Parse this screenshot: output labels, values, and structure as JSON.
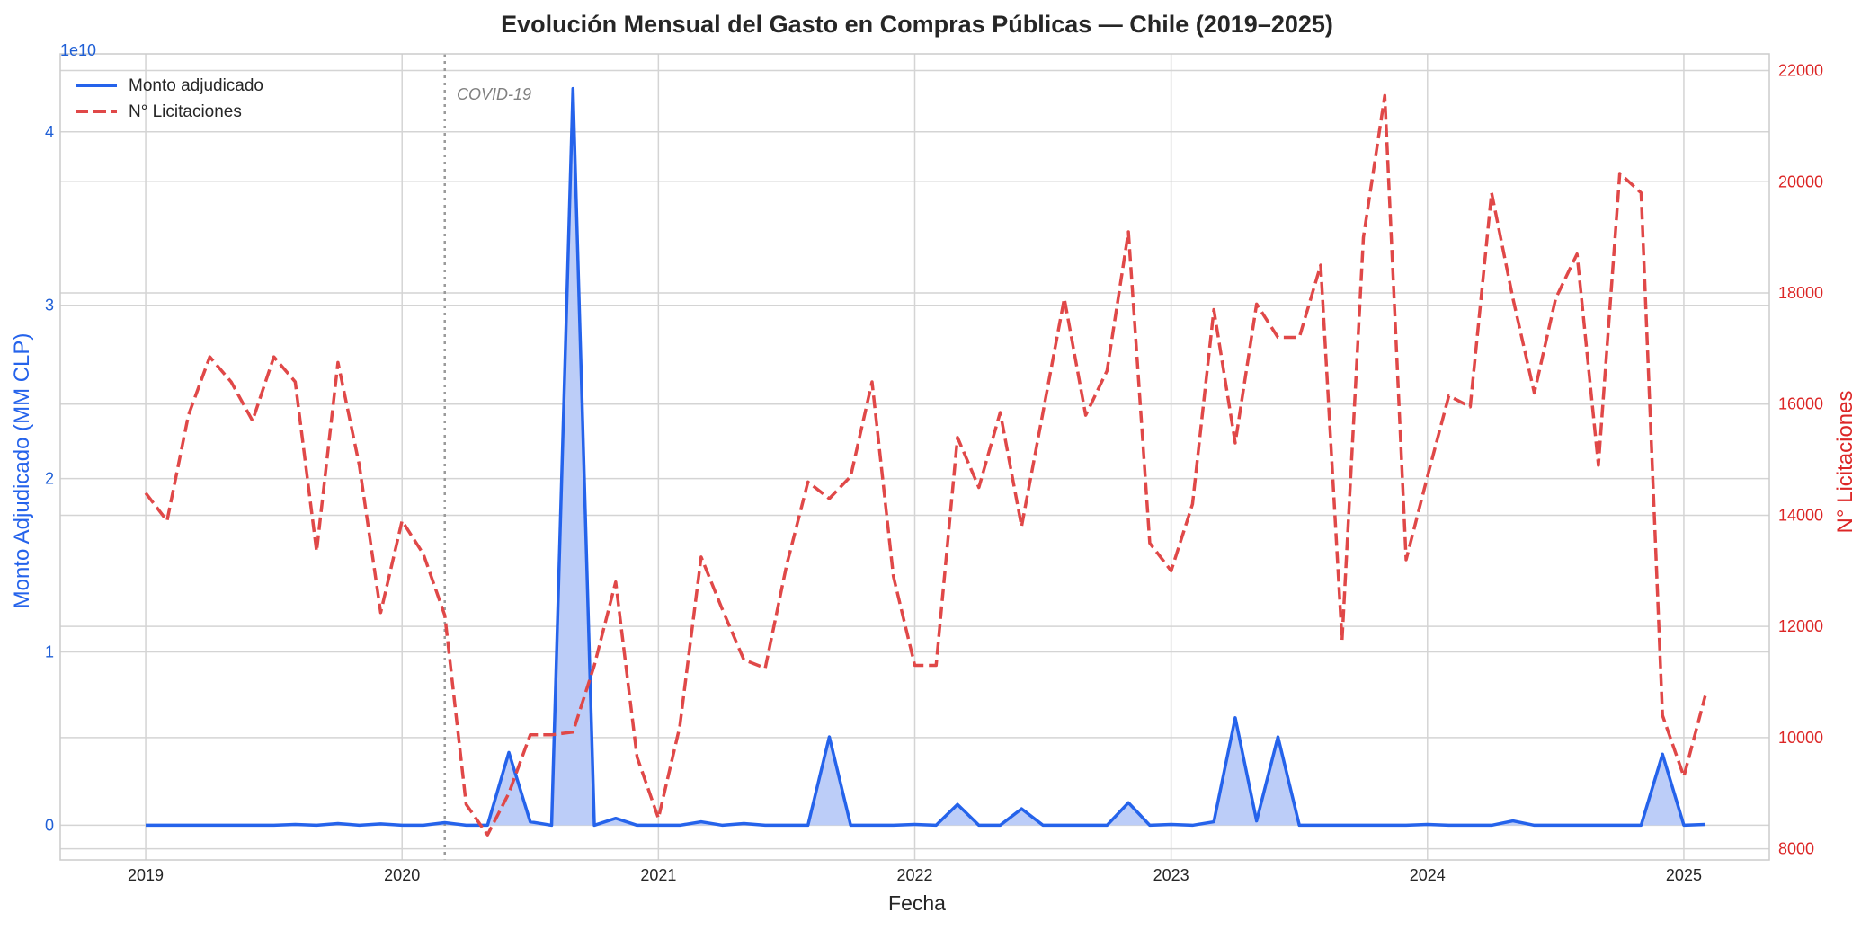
{
  "chart_data": {
    "type": "line",
    "title": "Evolución Mensual del Gasto en Compras Públicas — Chile (2019–2025)",
    "xlabel": "Fecha",
    "ylabel_left": "Monto Adjudicado (MM CLP)",
    "ylabel_right": "N° Licitaciones",
    "left_axis_multiplier": "1e10",
    "x_ticks": [
      "2019",
      "2020",
      "2021",
      "2022",
      "2023",
      "2024",
      "2025"
    ],
    "y_left_ticks": [
      "0",
      "1",
      "2",
      "3",
      "4"
    ],
    "y_right_ticks": [
      "8000",
      "10000",
      "12000",
      "14000",
      "16000",
      "18000",
      "20000",
      "22000"
    ],
    "xlim": [
      "2018-09",
      "2025-05"
    ],
    "ylim_left": [
      -2000000000.0,
      44500000000.0
    ],
    "ylim_right": [
      7800,
      22300
    ],
    "grid": true,
    "legend_position": "top-left",
    "annotation": {
      "label": "COVID-19",
      "date": "2020-03"
    },
    "colors": {
      "amount": "#2563eb",
      "amount_fill": "#bccdf8",
      "tenders": "#e04848",
      "covid_line": "#9a9a9a"
    },
    "series": [
      {
        "name": "Monto adjudicado",
        "axis": "left",
        "style": "solid-filled",
        "x": [
          "2019-01",
          "2019-02",
          "2019-03",
          "2019-04",
          "2019-05",
          "2019-06",
          "2019-07",
          "2019-08",
          "2019-09",
          "2019-10",
          "2019-11",
          "2019-12",
          "2020-01",
          "2020-02",
          "2020-03",
          "2020-04",
          "2020-05",
          "2020-06",
          "2020-07",
          "2020-08",
          "2020-09",
          "2020-10",
          "2020-11",
          "2020-12",
          "2021-01",
          "2021-02",
          "2021-03",
          "2021-04",
          "2021-05",
          "2021-06",
          "2021-07",
          "2021-08",
          "2021-09",
          "2021-10",
          "2021-11",
          "2021-12",
          "2022-01",
          "2022-02",
          "2022-03",
          "2022-04",
          "2022-05",
          "2022-06",
          "2022-07",
          "2022-08",
          "2022-09",
          "2022-10",
          "2022-11",
          "2022-12",
          "2023-01",
          "2023-02",
          "2023-03",
          "2023-04",
          "2023-05",
          "2023-06",
          "2023-07",
          "2023-08",
          "2023-09",
          "2023-10",
          "2023-11",
          "2023-12",
          "2024-01",
          "2024-02",
          "2024-03",
          "2024-04",
          "2024-05",
          "2024-06",
          "2024-07",
          "2024-08",
          "2024-09",
          "2024-10",
          "2024-11",
          "2024-12",
          "2025-01",
          "2025-02"
        ],
        "values": [
          0,
          0,
          0,
          0,
          0,
          0,
          0,
          50000000.0,
          0,
          100000000.0,
          0,
          80000000.0,
          0,
          0,
          150000000.0,
          0,
          0,
          4200000000.0,
          200000000.0,
          0,
          42500000000.0,
          0,
          400000000.0,
          0,
          0,
          0,
          200000000.0,
          0,
          100000000.0,
          0,
          0,
          0,
          5100000000.0,
          0,
          0,
          0,
          50000000.0,
          0,
          1200000000.0,
          0,
          0,
          950000000.0,
          0,
          0,
          0,
          0,
          1300000000.0,
          0,
          50000000.0,
          0,
          200000000.0,
          6200000000.0,
          250000000.0,
          5100000000.0,
          0,
          0,
          0,
          0,
          0,
          0,
          50000000.0,
          0,
          0,
          0,
          250000000.0,
          0,
          0,
          0,
          0,
          0,
          0,
          4100000000.0,
          0,
          50000000.0
        ]
      },
      {
        "name": "N° Licitaciones",
        "axis": "right",
        "style": "dashed",
        "x": [
          "2019-01",
          "2019-02",
          "2019-03",
          "2019-04",
          "2019-05",
          "2019-06",
          "2019-07",
          "2019-08",
          "2019-09",
          "2019-10",
          "2019-11",
          "2019-12",
          "2020-01",
          "2020-02",
          "2020-03",
          "2020-04",
          "2020-05",
          "2020-06",
          "2020-07",
          "2020-08",
          "2020-09",
          "2020-10",
          "2020-11",
          "2020-12",
          "2021-01",
          "2021-02",
          "2021-03",
          "2021-04",
          "2021-05",
          "2021-06",
          "2021-07",
          "2021-08",
          "2021-09",
          "2021-10",
          "2021-11",
          "2021-12",
          "2022-01",
          "2022-02",
          "2022-03",
          "2022-04",
          "2022-05",
          "2022-06",
          "2022-07",
          "2022-08",
          "2022-09",
          "2022-10",
          "2022-11",
          "2022-12",
          "2023-01",
          "2023-02",
          "2023-03",
          "2023-04",
          "2023-05",
          "2023-06",
          "2023-07",
          "2023-08",
          "2023-09",
          "2023-10",
          "2023-11",
          "2023-12",
          "2024-01",
          "2024-02",
          "2024-03",
          "2024-04",
          "2024-05",
          "2024-06",
          "2024-07",
          "2024-08",
          "2024-09",
          "2024-10",
          "2024-11",
          "2024-12",
          "2025-01",
          "2025-02"
        ],
        "values": [
          14400,
          13900,
          15800,
          16850,
          16400,
          15700,
          16850,
          16400,
          13350,
          16750,
          14900,
          12250,
          13900,
          13300,
          12200,
          8800,
          8250,
          9000,
          10050,
          10050,
          10100,
          11300,
          12800,
          9650,
          8550,
          10200,
          13250,
          12300,
          11400,
          11250,
          13100,
          14600,
          14300,
          14700,
          16400,
          12900,
          11300,
          11300,
          15400,
          14500,
          15850,
          13800,
          15850,
          17900,
          15800,
          16600,
          19100,
          13500,
          13000,
          14200,
          17700,
          15300,
          17800,
          17200,
          17200,
          18500,
          11750,
          19000,
          21550,
          13200,
          14700,
          16150,
          15950,
          19800,
          17900,
          16200,
          17900,
          18700,
          14900,
          20150,
          19800,
          10400,
          9300,
          10750
        ]
      }
    ]
  }
}
